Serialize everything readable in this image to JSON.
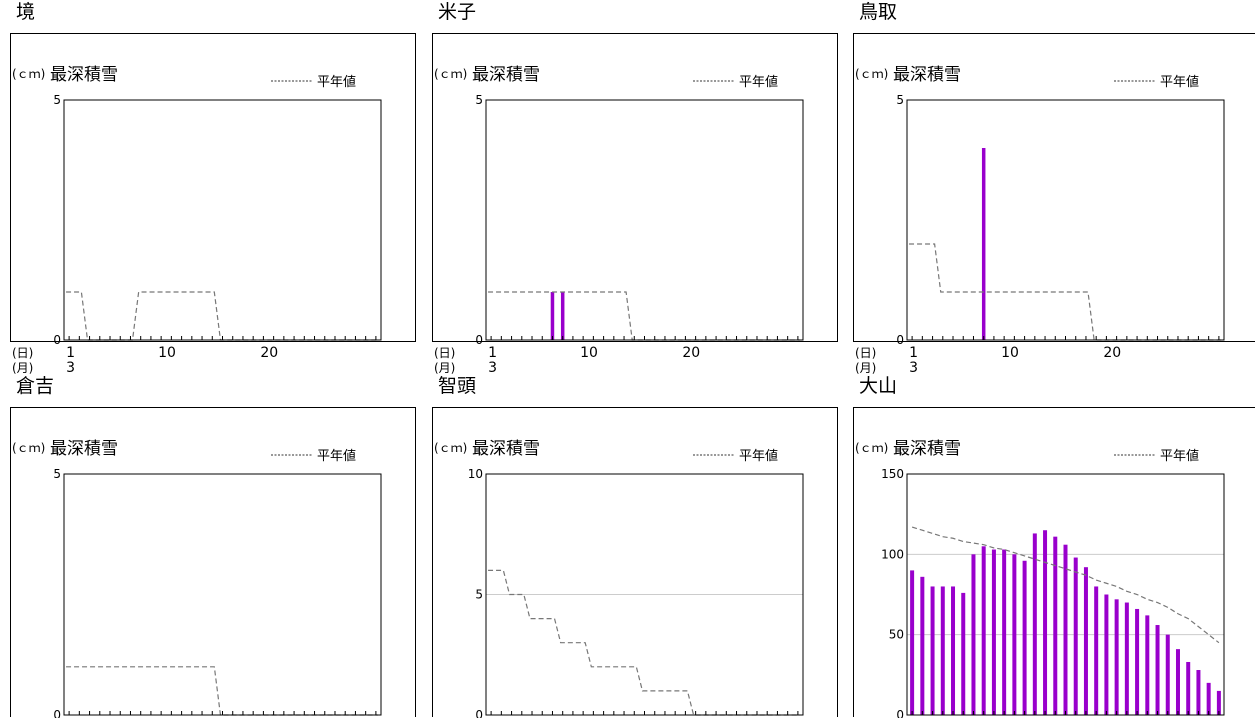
{
  "common": {
    "unit": "(ｃｍ)",
    "chart_title": "最深積雪",
    "legend_label": "平年値",
    "day_unit": "(日)",
    "month_unit": "(月)",
    "month": "3",
    "x_ticks": [
      "1",
      "10",
      "20"
    ]
  },
  "colors": {
    "bar": "#9900cc",
    "normal_line": "#777777",
    "grid": "#cccccc",
    "frame": "#000000"
  },
  "chart_data": [
    {
      "station": "境",
      "type": "bar",
      "ylim": [
        0,
        5
      ],
      "yticks": [
        0,
        5
      ],
      "title": "最深積雪",
      "ylabel": "(ｃｍ)",
      "xlabel": "(日)",
      "series": [
        {
          "name": "最深積雪",
          "x": [],
          "values": []
        },
        {
          "name": "平年値",
          "style": "dashed",
          "values": [
            1,
            1,
            0,
            0,
            0,
            0,
            0,
            1,
            1,
            1,
            1,
            1,
            1,
            1,
            1,
            0,
            0,
            0,
            0,
            0,
            0,
            0,
            0,
            0,
            0,
            0,
            0,
            0,
            0,
            0,
            0
          ]
        }
      ]
    },
    {
      "station": "米子",
      "type": "bar",
      "ylim": [
        0,
        5
      ],
      "yticks": [
        0,
        5
      ],
      "title": "最深積雪",
      "ylabel": "(ｃｍ)",
      "xlabel": "(日)",
      "series": [
        {
          "name": "最深積雪",
          "x": [
            7,
            8
          ],
          "values": [
            1,
            1
          ]
        },
        {
          "name": "平年値",
          "style": "dashed",
          "values": [
            1,
            1,
            1,
            1,
            1,
            1,
            1,
            1,
            1,
            1,
            1,
            1,
            1,
            1,
            0,
            0,
            0,
            0,
            0,
            0,
            0,
            0,
            0,
            0,
            0,
            0,
            0,
            0,
            0,
            0,
            0
          ]
        }
      ]
    },
    {
      "station": "鳥取",
      "type": "bar",
      "ylim": [
        0,
        5
      ],
      "yticks": [
        0,
        5
      ],
      "title": "最深積雪",
      "ylabel": "(ｃｍ)",
      "xlabel": "(日)",
      "series": [
        {
          "name": "最深積雪",
          "x": [
            8
          ],
          "values": [
            4
          ]
        },
        {
          "name": "平年値",
          "style": "dashed",
          "values": [
            2,
            2,
            2,
            1,
            1,
            1,
            1,
            1,
            1,
            1,
            1,
            1,
            1,
            1,
            1,
            1,
            1,
            1,
            0,
            0,
            0,
            0,
            0,
            0,
            0,
            0,
            0,
            0,
            0,
            0,
            0
          ]
        }
      ]
    },
    {
      "station": "倉吉",
      "type": "bar",
      "ylim": [
        0,
        5
      ],
      "yticks": [
        0,
        5
      ],
      "title": "最深積雪",
      "ylabel": "(ｃｍ)",
      "xlabel": "(日)",
      "series": [
        {
          "name": "最深積雪",
          "x": [],
          "values": []
        },
        {
          "name": "平年値",
          "style": "dashed",
          "values": [
            1,
            1,
            1,
            1,
            1,
            1,
            1,
            1,
            1,
            1,
            1,
            1,
            1,
            1,
            1,
            0,
            0,
            0,
            0,
            0,
            0,
            0,
            0,
            0,
            0,
            0,
            0,
            0,
            0,
            0,
            0
          ]
        }
      ]
    },
    {
      "station": "智頭",
      "type": "bar",
      "ylim": [
        0,
        10
      ],
      "yticks": [
        0,
        5,
        10
      ],
      "title": "最深積雪",
      "ylabel": "(ｃｍ)",
      "xlabel": "(日)",
      "series": [
        {
          "name": "最深積雪",
          "x": [],
          "values": []
        },
        {
          "name": "平年値",
          "style": "dashed",
          "values": [
            6,
            6,
            5,
            5,
            4,
            4,
            4,
            3,
            3,
            3,
            2,
            2,
            2,
            2,
            2,
            1,
            1,
            1,
            1,
            1,
            0,
            0,
            0,
            0,
            0,
            0,
            0,
            0,
            0,
            0,
            0
          ]
        }
      ]
    },
    {
      "station": "大山",
      "type": "bar",
      "ylim": [
        0,
        150
      ],
      "yticks": [
        0,
        50,
        100,
        150
      ],
      "title": "最深積雪",
      "ylabel": "(ｃｍ)",
      "xlabel": "(日)",
      "series": [
        {
          "name": "最深積雪",
          "x": [
            1,
            2,
            3,
            4,
            5,
            6,
            7,
            8,
            9,
            10,
            11,
            12,
            13,
            14,
            15,
            16,
            17,
            18,
            19,
            20,
            21,
            22,
            23,
            24,
            25,
            26,
            27,
            28,
            29,
            30,
            31
          ],
          "values": [
            90,
            86,
            80,
            80,
            80,
            76,
            100,
            105,
            103,
            103,
            100,
            96,
            113,
            115,
            111,
            106,
            98,
            92,
            80,
            75,
            72,
            70,
            66,
            62,
            56,
            50,
            41,
            33,
            28,
            20,
            15
          ]
        },
        {
          "name": "平年値",
          "style": "dashed",
          "values": [
            117,
            115,
            113,
            111,
            110,
            108,
            107,
            106,
            104,
            103,
            101,
            99,
            97,
            95,
            93,
            91,
            89,
            87,
            84,
            82,
            80,
            77,
            75,
            72,
            70,
            67,
            63,
            60,
            55,
            50,
            45
          ]
        }
      ]
    }
  ]
}
